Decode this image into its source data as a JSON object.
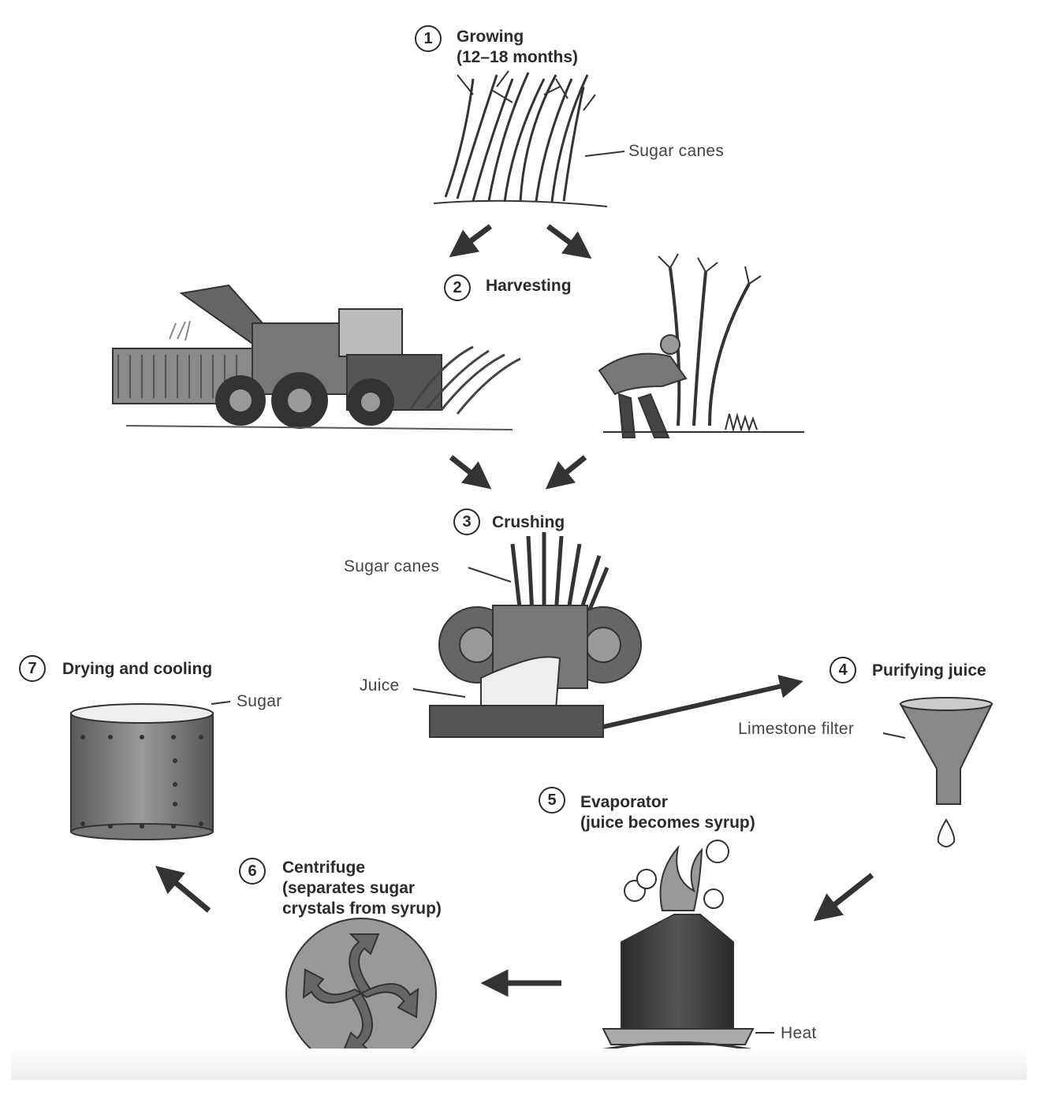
{
  "steps": [
    {
      "number": "1",
      "title": "Growing",
      "subtitle": "(12–18 months)"
    },
    {
      "number": "2",
      "title": "Harvesting"
    },
    {
      "number": "3",
      "title": "Crushing"
    },
    {
      "number": "4",
      "title": "Purifying juice"
    },
    {
      "number": "5",
      "title": "Evaporator",
      "subtitle": "(juice becomes syrup)"
    },
    {
      "number": "6",
      "title": "Centrifuge",
      "subtitle": "(separates sugar",
      "subtitle2": "crystals from syrup)"
    },
    {
      "number": "7",
      "title": "Drying and cooling"
    }
  ],
  "labels": {
    "sugar_canes_top": "Sugar canes",
    "sugar_canes_mill": "Sugar canes",
    "juice": "Juice",
    "limestone_filter": "Limestone filter",
    "heat": "Heat",
    "sugar": "Sugar"
  }
}
